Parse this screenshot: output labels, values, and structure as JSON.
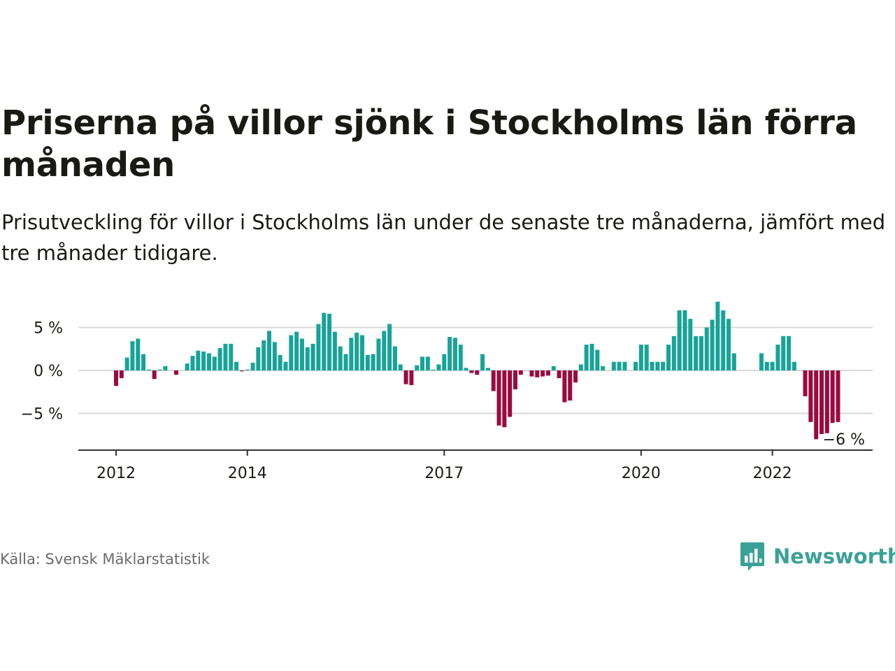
{
  "header": {
    "title": "Priserna på villor sjönk i Stockholms län förra månaden",
    "subtitle": "Prisutveckling för villor i Stockholms län under de senaste tre månaderna, jämfört med tre månader tidigare."
  },
  "footer": {
    "source": "Källa: Svensk Mäklarstatistik",
    "brand": "Newsworthy"
  },
  "colors": {
    "positive": "#17a398",
    "negative": "#9b0a3e",
    "grid": "#d9d9d9",
    "axis": "#333333",
    "text": "#1a1a14",
    "brand": "#3aa198"
  },
  "icons": {
    "brand_logo": "bar-chart-speech-bubble-icon"
  },
  "chart_data": {
    "type": "bar",
    "title": "",
    "xlabel": "",
    "ylabel": "",
    "y_unit": "%",
    "ylim": [
      -9,
      9
    ],
    "grid": true,
    "legend": "none",
    "y_ticks": [
      {
        "value": 5,
        "label": "5 %"
      },
      {
        "value": 0,
        "label": "0 %"
      },
      {
        "value": -5,
        "label": "−5 %"
      }
    ],
    "x_ticks": [
      {
        "date": "2012-01",
        "label": "2012"
      },
      {
        "date": "2014-01",
        "label": "2014"
      },
      {
        "date": "2017-01",
        "label": "2017"
      },
      {
        "date": "2020-01",
        "label": "2020"
      },
      {
        "date": "2022-01",
        "label": "2022"
      }
    ],
    "annotation": {
      "date": "2022-12",
      "label": "−6 %"
    },
    "start_month": "2012-01",
    "values": [
      -1.8,
      -0.9,
      1.5,
      3.4,
      3.7,
      1.9,
      0.1,
      -1.0,
      0.1,
      0.5,
      0.0,
      -0.5,
      0.0,
      0.8,
      1.7,
      2.3,
      2.2,
      2.0,
      1.6,
      2.6,
      3.1,
      3.1,
      1.0,
      -0.1,
      0.1,
      0.9,
      2.7,
      3.5,
      4.6,
      3.3,
      1.8,
      1.0,
      4.1,
      4.5,
      3.7,
      2.7,
      3.1,
      5.4,
      6.7,
      6.6,
      4.5,
      2.8,
      1.9,
      3.8,
      4.4,
      4.1,
      1.8,
      1.9,
      3.7,
      4.6,
      5.4,
      2.8,
      0.7,
      -1.6,
      -1.7,
      0.6,
      1.6,
      1.6,
      0.1,
      0.7,
      1.9,
      3.9,
      3.8,
      3.0,
      0.3,
      -0.3,
      -0.5,
      1.9,
      0.3,
      -2.4,
      -6.4,
      -6.6,
      -5.4,
      -2.2,
      -0.5,
      0.0,
      -0.7,
      -0.8,
      -0.7,
      -0.6,
      0.5,
      -0.9,
      -3.7,
      -3.5,
      -1.4,
      0.7,
      3.0,
      3.1,
      2.4,
      0.5,
      0.0,
      1.0,
      1.0,
      1.0,
      0.0,
      1.0,
      3.0,
      3.0,
      1.0,
      1.0,
      1.0,
      3.0,
      4.0,
      7.0,
      7.0,
      6.0,
      4.0,
      4.0,
      5.0,
      5.9,
      8.0,
      7.0,
      6.0,
      2.0,
      0.0,
      0.0,
      0.0,
      0.0,
      2.0,
      1.0,
      1.0,
      3.0,
      4.0,
      4.0,
      1.0,
      0.0,
      -3.0,
      -6.0,
      -8.0,
      -7.4,
      -7.3,
      -6.1,
      -6.0
    ]
  }
}
